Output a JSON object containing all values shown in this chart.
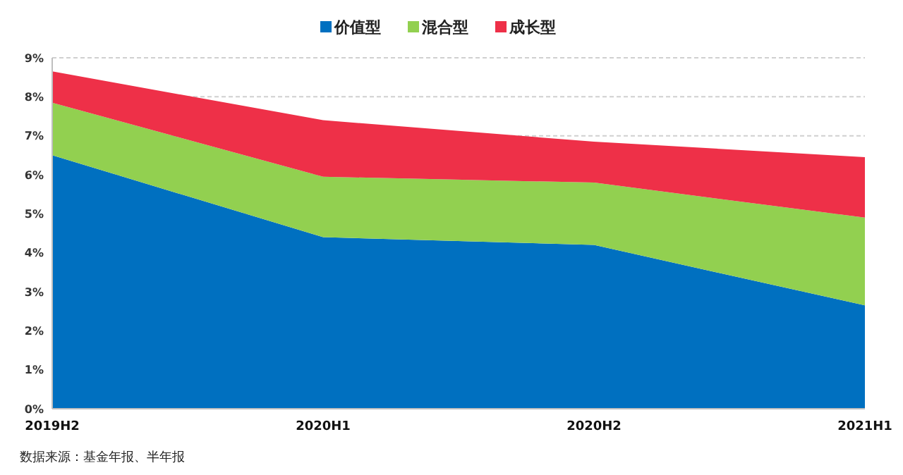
{
  "chart_data": {
    "type": "area",
    "stacked": true,
    "categories": [
      "2019H2",
      "2020H1",
      "2020H2",
      "2021H1"
    ],
    "series": [
      {
        "name": "价值型",
        "color": "#0070c0",
        "values": [
          6.5,
          4.4,
          4.2,
          2.65
        ]
      },
      {
        "name": "混合型",
        "color": "#92d050",
        "values": [
          1.35,
          1.55,
          1.6,
          2.25
        ]
      },
      {
        "name": "成长型",
        "color": "#ee3048",
        "values": [
          0.8,
          1.45,
          1.05,
          1.55
        ]
      }
    ],
    "ylim": [
      0,
      9
    ],
    "yticks": [
      {
        "value": 0,
        "label": "0%"
      },
      {
        "value": 1,
        "label": "1%"
      },
      {
        "value": 2,
        "label": "2%"
      },
      {
        "value": 3,
        "label": "3%"
      },
      {
        "value": 4,
        "label": "4%"
      },
      {
        "value": 5,
        "label": "5%"
      },
      {
        "value": 6,
        "label": "6%"
      },
      {
        "value": 7,
        "label": "7%"
      },
      {
        "value": 8,
        "label": "8%"
      },
      {
        "value": 9,
        "label": "9%"
      }
    ],
    "grid": "y",
    "legend": "top",
    "annotations": [
      "数据来源：基金年报、半年报"
    ]
  }
}
